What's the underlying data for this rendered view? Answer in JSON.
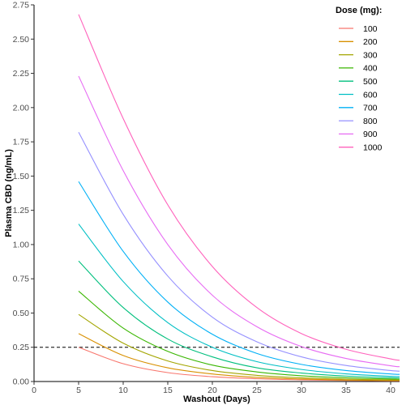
{
  "chart_data": {
    "type": "line",
    "xlabel": "Washout (Days)",
    "ylabel": "Plasma CBD (ng/mL)",
    "xlim": [
      0,
      41
    ],
    "ylim": [
      0,
      2.75
    ],
    "x_ticks": [
      0,
      5,
      10,
      15,
      20,
      25,
      30,
      35,
      40
    ],
    "y_ticks": [
      "0.00",
      "0.25",
      "0.50",
      "0.75",
      "1.00",
      "1.25",
      "1.50",
      "1.75",
      "2.00",
      "2.25",
      "2.50",
      "2.75"
    ],
    "x": [
      5,
      10,
      15,
      20,
      25,
      30,
      35,
      40,
      41
    ],
    "series": [
      {
        "name": "100",
        "color": "#F8766D",
        "values": [
          0.25,
          0.13,
          0.065,
          0.035,
          0.02,
          0.012,
          0.008,
          0.005,
          0.005
        ]
      },
      {
        "name": "200",
        "color": "#D89000",
        "values": [
          0.35,
          0.19,
          0.1,
          0.055,
          0.03,
          0.018,
          0.011,
          0.007,
          0.007
        ]
      },
      {
        "name": "300",
        "color": "#A3A500",
        "values": [
          0.49,
          0.28,
          0.15,
          0.08,
          0.045,
          0.027,
          0.017,
          0.012,
          0.011
        ]
      },
      {
        "name": "400",
        "color": "#39B600",
        "values": [
          0.66,
          0.39,
          0.22,
          0.12,
          0.07,
          0.042,
          0.027,
          0.018,
          0.017
        ]
      },
      {
        "name": "500",
        "color": "#00BF7D",
        "values": [
          0.88,
          0.54,
          0.31,
          0.18,
          0.1,
          0.062,
          0.04,
          0.027,
          0.025
        ]
      },
      {
        "name": "600",
        "color": "#00BFC4",
        "values": [
          1.15,
          0.73,
          0.43,
          0.25,
          0.145,
          0.088,
          0.056,
          0.038,
          0.036
        ]
      },
      {
        "name": "700",
        "color": "#00B0F6",
        "values": [
          1.46,
          0.95,
          0.58,
          0.345,
          0.205,
          0.125,
          0.08,
          0.055,
          0.052
        ]
      },
      {
        "name": "800",
        "color": "#9590FF",
        "values": [
          1.82,
          1.22,
          0.77,
          0.47,
          0.29,
          0.18,
          0.117,
          0.08,
          0.076
        ]
      },
      {
        "name": "900",
        "color": "#E76BF3",
        "values": [
          2.23,
          1.54,
          1.0,
          0.63,
          0.4,
          0.255,
          0.168,
          0.115,
          0.108
        ]
      },
      {
        "name": "1000",
        "color": "#FF62BC",
        "values": [
          2.68,
          1.92,
          1.29,
          0.84,
          0.54,
          0.35,
          0.235,
          0.165,
          0.155
        ]
      }
    ],
    "reference_line": {
      "y": 0.25,
      "style": "dashed",
      "color": "#000000"
    },
    "legend": {
      "title": "Dose (mg):",
      "position": "top-right"
    },
    "grid": false
  }
}
